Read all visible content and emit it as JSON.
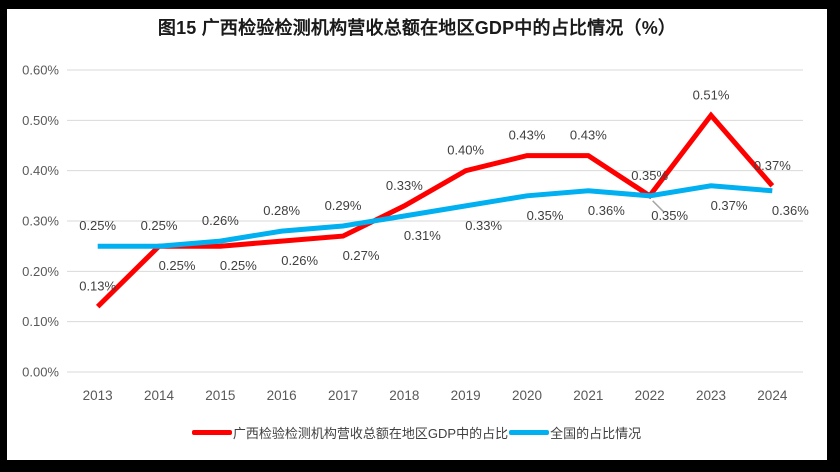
{
  "figure": {
    "frame_color": "#000000",
    "background": "#ffffff"
  },
  "chart_data": {
    "type": "line",
    "title": "图15 广西检验检测机构营收总额在地区GDP中的占比情况（%）",
    "categories": [
      "2013",
      "2014",
      "2015",
      "2016",
      "2017",
      "2018",
      "2019",
      "2020",
      "2021",
      "2022",
      "2023",
      "2024"
    ],
    "y_axis": {
      "min": 0,
      "max": 0.6,
      "step": 0.1,
      "tick_labels": [
        "0.00%",
        "0.10%",
        "0.20%",
        "0.30%",
        "0.40%",
        "0.50%",
        "0.60%"
      ]
    },
    "grid": true,
    "gridline_color": "#D9D9D9",
    "axis_text_color": "#595959",
    "data_label_color": "#404040",
    "leader_line_color": "#A6A6A6",
    "legend_position": "bottom",
    "series": [
      {
        "name": "广西检验检测机构营收总额在地区GDP中的占比",
        "color": "#FF0000",
        "values": [
          0.13,
          0.25,
          0.25,
          0.26,
          0.27,
          0.33,
          0.4,
          0.43,
          0.43,
          0.35,
          0.51,
          0.37
        ],
        "data_labels": [
          "0.13%",
          "0.25%",
          "0.25%",
          "0.26%",
          "0.27%",
          "0.33%",
          "0.40%",
          "0.43%",
          "0.43%",
          "0.35%",
          "0.51%",
          "0.37%"
        ],
        "label_positions": [
          "above",
          "below",
          "below",
          "below",
          "below",
          "above",
          "above",
          "above",
          "above",
          "above",
          "above",
          "above"
        ]
      },
      {
        "name": "全国的占比情况",
        "color": "#00B0F0",
        "values": [
          0.25,
          0.25,
          0.26,
          0.28,
          0.29,
          0.31,
          0.33,
          0.35,
          0.36,
          0.35,
          0.37,
          0.36
        ],
        "data_labels": [
          "0.25%",
          "0.25%",
          "0.26%",
          "0.28%",
          "0.29%",
          "0.31%",
          "0.33%",
          "0.35%",
          "0.36%",
          "0.35%",
          "0.37%",
          "0.36%"
        ],
        "label_positions": [
          "above",
          "above",
          "above",
          "above",
          "above",
          "below",
          "below",
          "below",
          "below",
          "below-leader",
          "below",
          "below"
        ]
      }
    ]
  }
}
